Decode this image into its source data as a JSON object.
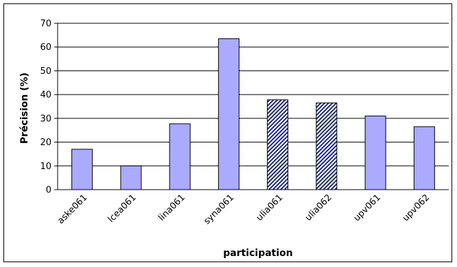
{
  "chart_data": {
    "type": "bar",
    "title": "",
    "xlabel": "participation",
    "ylabel": "Précision (%)",
    "ylim": [
      0,
      70
    ],
    "yticks": [
      0,
      10,
      20,
      30,
      40,
      50,
      60,
      70
    ],
    "grid": true,
    "categories": [
      "aske061",
      "lcea061",
      "lina061",
      "syna061",
      "ulia061",
      "ulia062",
      "upv061",
      "upv062"
    ],
    "values": [
      17,
      10,
      27.7,
      63.5,
      37.8,
      36.5,
      31,
      26.5
    ],
    "bar_fill": [
      "solid",
      "solid",
      "solid",
      "solid",
      "hatched",
      "hatched",
      "solid",
      "solid"
    ],
    "colors": {
      "bar": "#aaaaff",
      "hatch": "#1f2a7a",
      "grid": "#000000"
    }
  }
}
